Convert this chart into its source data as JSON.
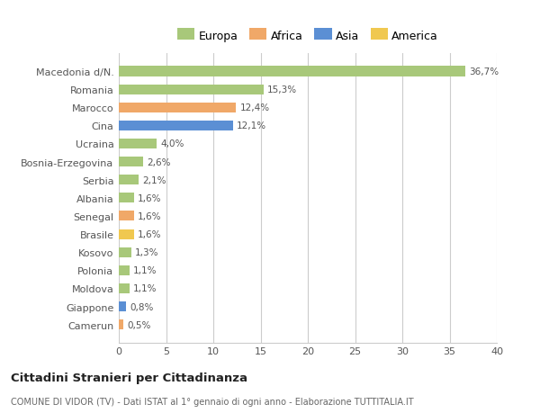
{
  "categories": [
    "Camerun",
    "Giappone",
    "Moldova",
    "Polonia",
    "Kosovo",
    "Brasile",
    "Senegal",
    "Albania",
    "Serbia",
    "Bosnia-Erzegovina",
    "Ucraina",
    "Cina",
    "Marocco",
    "Romania",
    "Macedonia d/N."
  ],
  "values": [
    0.5,
    0.8,
    1.1,
    1.1,
    1.3,
    1.6,
    1.6,
    1.6,
    2.1,
    2.6,
    4.0,
    12.1,
    12.4,
    15.3,
    36.7
  ],
  "colors": [
    "#f0a868",
    "#5b8fd4",
    "#a8c87a",
    "#a8c87a",
    "#a8c87a",
    "#f0c850",
    "#f0a868",
    "#a8c87a",
    "#a8c87a",
    "#a8c87a",
    "#a8c87a",
    "#5b8fd4",
    "#f0a868",
    "#a8c87a",
    "#a8c87a"
  ],
  "labels": [
    "0,5%",
    "0,8%",
    "1,1%",
    "1,1%",
    "1,3%",
    "1,6%",
    "1,6%",
    "1,6%",
    "2,1%",
    "2,6%",
    "4,0%",
    "12,1%",
    "12,4%",
    "15,3%",
    "36,7%"
  ],
  "legend": {
    "Europa": "#a8c87a",
    "Africa": "#f0a868",
    "Asia": "#5b8fd4",
    "America": "#f0c850"
  },
  "xlim": [
    0,
    40
  ],
  "xticks": [
    0,
    5,
    10,
    15,
    20,
    25,
    30,
    35,
    40
  ],
  "title": "Cittadini Stranieri per Cittadinanza",
  "subtitle": "COMUNE DI VIDOR (TV) - Dati ISTAT al 1° gennaio di ogni anno - Elaborazione TUTTITALIA.IT",
  "bg_color": "#ffffff",
  "grid_color": "#cccccc",
  "bar_height": 0.55,
  "fig_width": 6.0,
  "fig_height": 4.6,
  "dpi": 100
}
